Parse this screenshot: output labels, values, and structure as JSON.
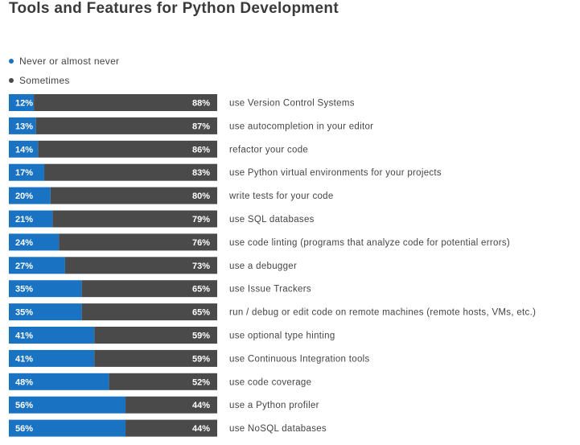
{
  "chart_data": {
    "type": "bar",
    "orientation": "horizontal",
    "stacked": true,
    "title": "Tools and Features for Python Development",
    "legend_position": "top-left",
    "categories": [
      "use Version Control Systems",
      "use autocompletion in your editor",
      "refactor your code",
      "use Python virtual environments for your projects",
      "write tests for your code",
      "use SQL databases",
      "use code linting (programs that analyze code for potential errors)",
      "use a debugger",
      "use Issue Trackers",
      "run / debug or edit code on remote machines (remote hosts, VMs, etc.)",
      "use optional type hinting",
      "use Continuous Integration tools",
      "use code coverage",
      "use a Python profiler",
      "use NoSQL databases"
    ],
    "series": [
      {
        "name": "Never or almost never",
        "color": "#1a73c2",
        "values": [
          12,
          13,
          14,
          17,
          20,
          21,
          24,
          27,
          35,
          35,
          41,
          41,
          48,
          56,
          56
        ],
        "labels": [
          "12%",
          "13%",
          "14%",
          "17%",
          "20%",
          "21%",
          "24%",
          "27%",
          "35%",
          "35%",
          "41%",
          "41%",
          "48%",
          "56%",
          "56%"
        ]
      },
      {
        "name": "Sometimes",
        "color": "#4a4a4a",
        "values": [
          88,
          87,
          86,
          83,
          80,
          79,
          76,
          73,
          65,
          65,
          59,
          59,
          52,
          44,
          44
        ],
        "labels": [
          "88%",
          "87%",
          "86%",
          "83%",
          "80%",
          "79%",
          "76%",
          "73%",
          "65%",
          "65%",
          "59%",
          "59%",
          "52%",
          "44%",
          "44%"
        ]
      }
    ],
    "xlim": [
      0,
      100
    ],
    "grid": false
  }
}
